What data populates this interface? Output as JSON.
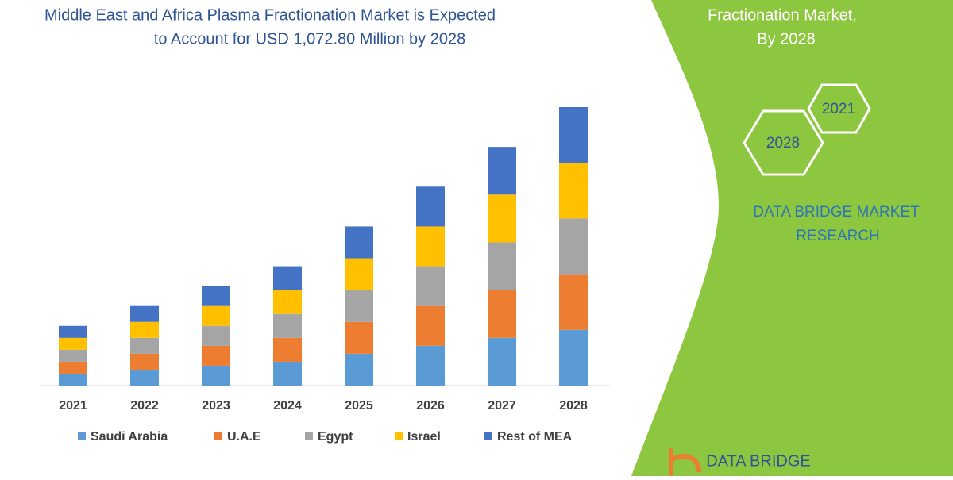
{
  "chart_data": {
    "type": "stacked-bar",
    "title": [
      "Middle East and Africa Plasma Fractionation Market is Expected",
      "to Account for USD 1,072.80 Million by 2028"
    ],
    "categories": [
      "2021",
      "2022",
      "2023",
      "2024",
      "2025",
      "2026",
      "2027",
      "2028"
    ],
    "series": [
      {
        "name": "Saudi Arabia",
        "color": "#5b9bd5",
        "values": [
          15,
          20,
          25,
          30,
          40,
          50,
          60,
          70
        ]
      },
      {
        "name": "U.A.E",
        "color": "#ed7d31",
        "values": [
          15,
          20,
          25,
          30,
          40,
          50,
          60,
          70
        ]
      },
      {
        "name": "Egypt",
        "color": "#a5a5a5",
        "values": [
          15,
          20,
          25,
          30,
          40,
          50,
          60,
          70
        ]
      },
      {
        "name": "Israel",
        "color": "#ffc000",
        "values": [
          15,
          20,
          25,
          30,
          40,
          50,
          60,
          70
        ]
      },
      {
        "name": "Rest of MEA",
        "color": "#4472c4",
        "values": [
          15,
          20,
          25,
          30,
          40,
          50,
          60,
          70
        ]
      }
    ]
  },
  "panel": {
    "heading": [
      "Fractionation Market,",
      "By 2028"
    ],
    "hexagons": [
      "2021",
      "2028"
    ],
    "brand": [
      "DATA BRIDGE MARKET",
      "RESEARCH"
    ],
    "logo": "DATA BRIDGE"
  }
}
